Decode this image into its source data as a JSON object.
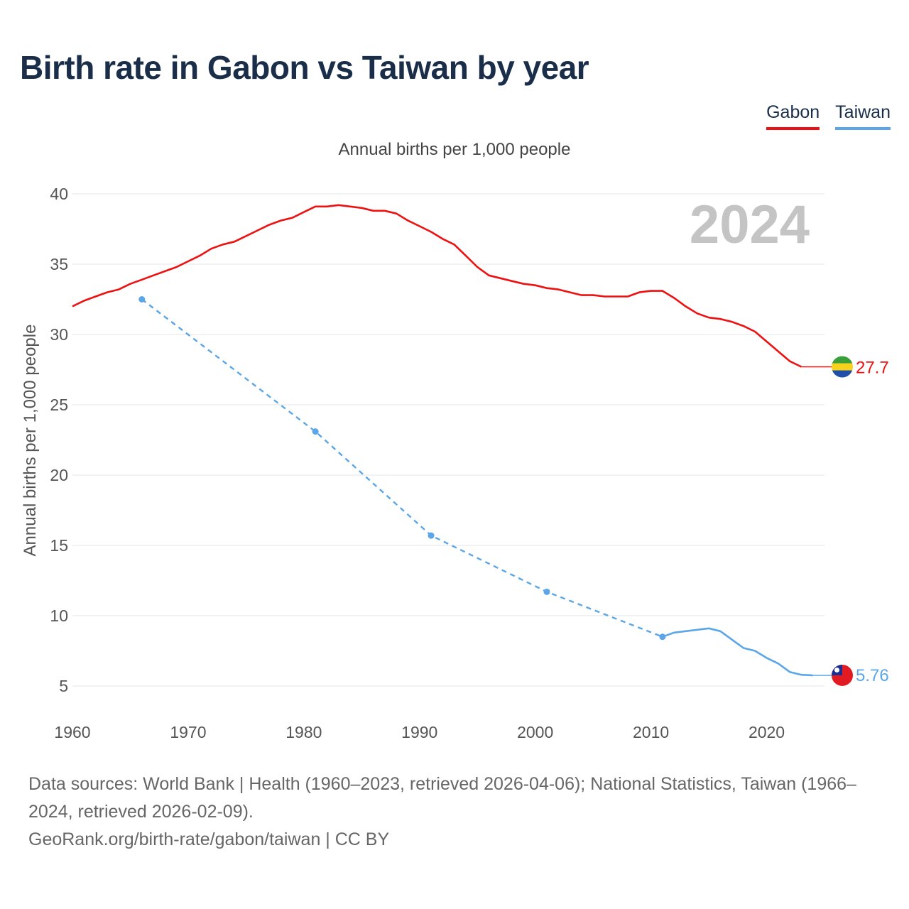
{
  "title": "Birth rate in Gabon vs Taiwan by year",
  "subtitle": "Annual births per 1,000 people",
  "legend": [
    {
      "name": "Gabon",
      "color": "#ee1111"
    },
    {
      "name": "Taiwan",
      "color": "#5aa6e8"
    }
  ],
  "footer": {
    "sources": "Data sources: World Bank | Health (1960–2023, retrieved 2026-04-06); National Statistics, Taiwan (1966–2024, retrieved 2026-02-09).",
    "attribution": "GeoRank.org/birth-rate/gabon/taiwan | CC BY"
  },
  "chart_data": {
    "type": "line",
    "title": "Birth rate in Gabon vs Taiwan by year",
    "xlabel": "",
    "ylabel": "Annual births per 1,000 people",
    "xlim": [
      1960,
      2025
    ],
    "ylim": [
      3.5,
      41
    ],
    "x_ticks": [
      1960,
      1970,
      1980,
      1990,
      2000,
      2010,
      2020
    ],
    "y_ticks": [
      5,
      10,
      15,
      20,
      25,
      30,
      35,
      40
    ],
    "year_watermark": "2024",
    "series": [
      {
        "name": "Gabon",
        "color": "#ee1111",
        "end_label": "27.7",
        "flag": "gabon-flag",
        "points": [
          [
            1960,
            32.0
          ],
          [
            1961,
            32.4
          ],
          [
            1962,
            32.7
          ],
          [
            1963,
            33.0
          ],
          [
            1964,
            33.2
          ],
          [
            1965,
            33.6
          ],
          [
            1966,
            33.9
          ],
          [
            1967,
            34.2
          ],
          [
            1968,
            34.5
          ],
          [
            1969,
            34.8
          ],
          [
            1970,
            35.2
          ],
          [
            1971,
            35.6
          ],
          [
            1972,
            36.1
          ],
          [
            1973,
            36.4
          ],
          [
            1974,
            36.6
          ],
          [
            1975,
            37.0
          ],
          [
            1976,
            37.4
          ],
          [
            1977,
            37.8
          ],
          [
            1978,
            38.1
          ],
          [
            1979,
            38.3
          ],
          [
            1980,
            38.7
          ],
          [
            1981,
            39.1
          ],
          [
            1982,
            39.1
          ],
          [
            1983,
            39.2
          ],
          [
            1984,
            39.1
          ],
          [
            1985,
            39.0
          ],
          [
            1986,
            38.8
          ],
          [
            1987,
            38.8
          ],
          [
            1988,
            38.6
          ],
          [
            1989,
            38.1
          ],
          [
            1990,
            37.7
          ],
          [
            1991,
            37.3
          ],
          [
            1992,
            36.8
          ],
          [
            1993,
            36.4
          ],
          [
            1994,
            35.6
          ],
          [
            1995,
            34.8
          ],
          [
            1996,
            34.2
          ],
          [
            1997,
            34.0
          ],
          [
            1998,
            33.8
          ],
          [
            1999,
            33.6
          ],
          [
            2000,
            33.5
          ],
          [
            2001,
            33.3
          ],
          [
            2002,
            33.2
          ],
          [
            2003,
            33.0
          ],
          [
            2004,
            32.8
          ],
          [
            2005,
            32.8
          ],
          [
            2006,
            32.7
          ],
          [
            2007,
            32.7
          ],
          [
            2008,
            32.7
          ],
          [
            2009,
            33.0
          ],
          [
            2010,
            33.1
          ],
          [
            2011,
            33.1
          ],
          [
            2012,
            32.6
          ],
          [
            2013,
            32.0
          ],
          [
            2014,
            31.5
          ],
          [
            2015,
            31.2
          ],
          [
            2016,
            31.1
          ],
          [
            2017,
            30.9
          ],
          [
            2018,
            30.6
          ],
          [
            2019,
            30.2
          ],
          [
            2020,
            29.5
          ],
          [
            2021,
            28.8
          ],
          [
            2022,
            28.1
          ],
          [
            2023,
            27.7
          ]
        ],
        "extend_to": 2024
      },
      {
        "name": "Taiwan",
        "color": "#5aa6e8",
        "end_label": "5.76",
        "flag": "taiwan-flag",
        "sparse_points": [
          [
            1966,
            32.5
          ],
          [
            1981,
            23.1
          ],
          [
            1991,
            15.7
          ],
          [
            2001,
            11.7
          ],
          [
            2011,
            8.5
          ]
        ],
        "points": [
          [
            2011,
            8.5
          ],
          [
            2012,
            8.8
          ],
          [
            2013,
            8.9
          ],
          [
            2014,
            9.0
          ],
          [
            2015,
            9.1
          ],
          [
            2016,
            8.9
          ],
          [
            2017,
            8.3
          ],
          [
            2018,
            7.7
          ],
          [
            2019,
            7.5
          ],
          [
            2020,
            7.0
          ],
          [
            2021,
            6.6
          ],
          [
            2022,
            6.0
          ],
          [
            2023,
            5.8
          ],
          [
            2024,
            5.76
          ]
        ]
      }
    ]
  }
}
